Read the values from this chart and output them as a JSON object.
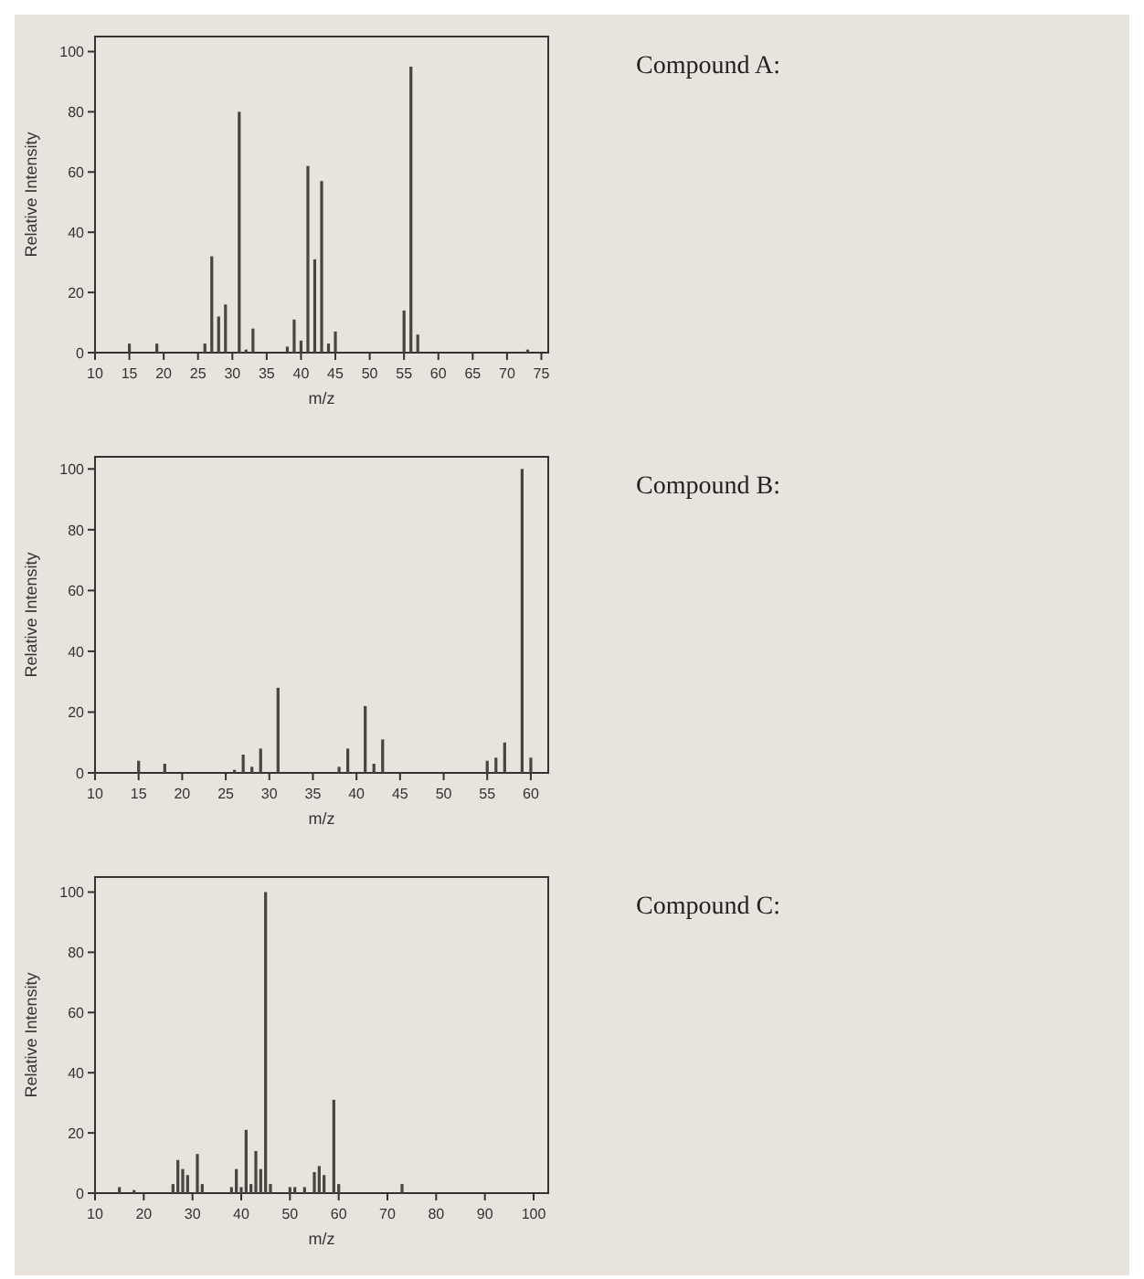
{
  "chart_data": [
    {
      "type": "bar",
      "annotations": [
        "Compound A:"
      ],
      "xlabel": "m/z",
      "ylabel": "Relative Intensity",
      "color": "#4a4440",
      "xlim": [
        10,
        76
      ],
      "xticks": [
        10,
        15,
        20,
        25,
        30,
        35,
        40,
        45,
        50,
        55,
        60,
        65,
        70,
        75
      ],
      "ylim": [
        0,
        105
      ],
      "yticks": [
        0,
        20,
        40,
        60,
        80,
        100
      ],
      "grid": false,
      "x": [
        15,
        19,
        26,
        27,
        28,
        29,
        31,
        32,
        33,
        38,
        39,
        40,
        41,
        42,
        43,
        44,
        45,
        55,
        56,
        57,
        73
      ],
      "values": [
        3,
        3,
        3,
        32,
        12,
        16,
        80,
        1,
        8,
        2,
        11,
        4,
        62,
        31,
        57,
        3,
        7,
        14,
        95,
        6,
        1
      ]
    },
    {
      "type": "bar",
      "annotations": [
        "Compound B:"
      ],
      "xlabel": "m/z",
      "ylabel": "Relative Intensity",
      "color": "#4a4440",
      "xlim": [
        10,
        62
      ],
      "xticks": [
        10,
        15,
        20,
        25,
        30,
        35,
        40,
        45,
        50,
        55,
        60
      ],
      "ylim": [
        0,
        104
      ],
      "yticks": [
        0,
        20,
        40,
        60,
        80,
        100
      ],
      "grid": false,
      "x": [
        15,
        18,
        26,
        27,
        28,
        29,
        31,
        38,
        39,
        41,
        42,
        43,
        55,
        56,
        57,
        59,
        60
      ],
      "values": [
        4,
        3,
        1,
        6,
        2,
        8,
        28,
        2,
        8,
        22,
        3,
        11,
        4,
        5,
        10,
        100,
        5
      ]
    },
    {
      "type": "bar",
      "annotations": [
        "Compound C:"
      ],
      "xlabel": "m/z",
      "ylabel": "Relative Intensity",
      "color": "#4a4440",
      "xlim": [
        10,
        103
      ],
      "xticks": [
        10,
        20,
        30,
        40,
        50,
        60,
        70,
        80,
        90,
        100
      ],
      "ylim": [
        0,
        105
      ],
      "yticks": [
        0,
        20,
        40,
        60,
        80,
        100
      ],
      "grid": false,
      "x": [
        15,
        18,
        26,
        27,
        28,
        29,
        31,
        32,
        38,
        39,
        40,
        41,
        42,
        43,
        44,
        45,
        46,
        50,
        51,
        53,
        55,
        56,
        57,
        59,
        60,
        73
      ],
      "values": [
        2,
        1,
        3,
        11,
        8,
        6,
        13,
        3,
        2,
        8,
        2,
        21,
        3,
        14,
        8,
        100,
        3,
        2,
        2,
        2,
        7,
        9,
        6,
        31,
        3,
        3
      ]
    }
  ]
}
